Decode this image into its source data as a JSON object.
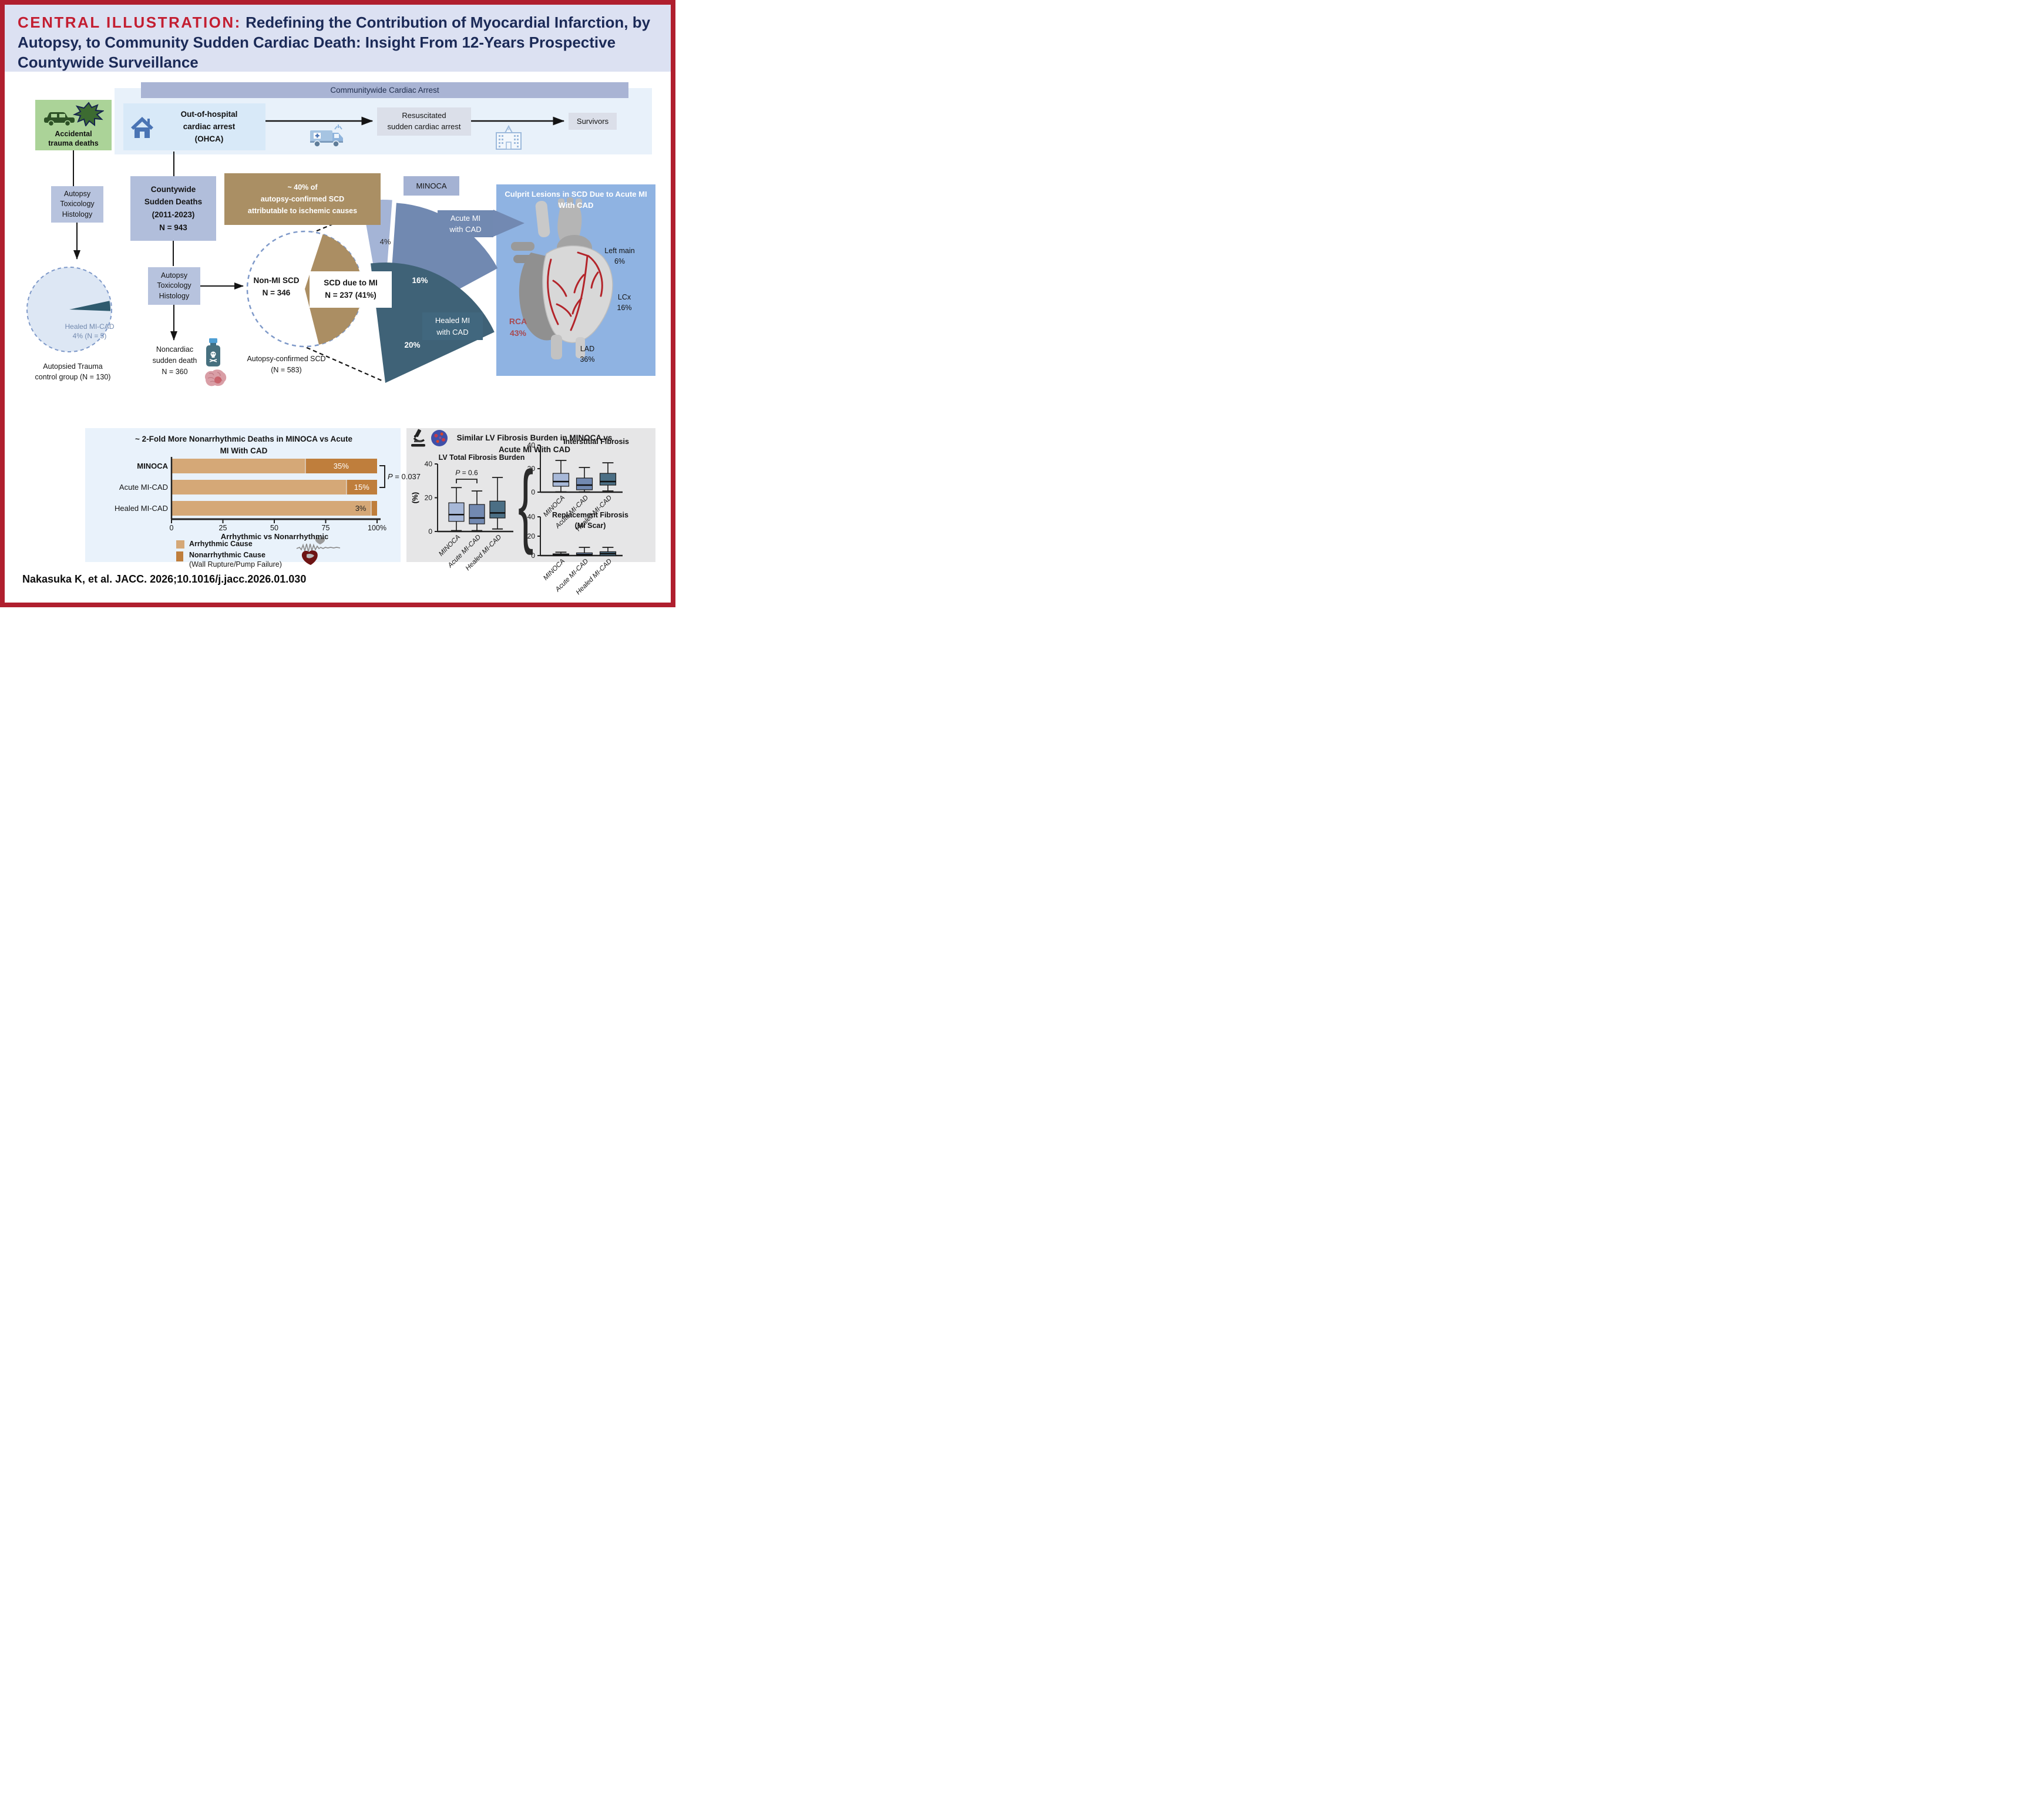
{
  "title": {
    "label": "CENTRAL ILLUSTRATION:",
    "text": "Redefining the Contribution of Myocardial Infarction, by Autopsy, to Community Sudden Cardiac Death: Insight From 12-Years Prospective Countywide Surveillance"
  },
  "citation": "Nakasuka K, et al. JACC. 2026;10.1016/j.jacc.2026.01.030",
  "top_flow": {
    "header": "Communitywide Cardiac Arrest",
    "accidental": {
      "line1": "Accidental",
      "line2": "trauma deaths"
    },
    "ohca": {
      "line1": "Out-of-hospital",
      "line2": "cardiac arrest",
      "line3": "(OHCA)"
    },
    "resuscitated": {
      "line1": "Resuscitated",
      "line2": "sudden cardiac arrest"
    },
    "survivors": "Survivors"
  },
  "left_flow": {
    "autopsy_box": {
      "line1": "Autopsy",
      "line2": "Toxicology",
      "line3": "Histology"
    },
    "pie_label": {
      "line1": "Healed MI-CAD",
      "line2": "4% (N = 5)"
    },
    "caption": {
      "line1": "Autopsied Trauma",
      "line2": "control group (N = 130)"
    }
  },
  "mid_flow": {
    "countywide": {
      "line1": "Countywide",
      "line2": "Sudden Deaths",
      "line3": "(2011-2023)",
      "line4": "N = 943"
    },
    "autopsy_box": {
      "line1": "Autopsy",
      "line2": "Toxicology",
      "line3": "Histology"
    },
    "noncardiac": {
      "line1": "Noncardiac",
      "line2": "sudden death",
      "line3": "N = 360"
    },
    "brown_note": {
      "line1": "~ 40% of",
      "line2": "autopsy-confirmed SCD",
      "line3": "attributable to ischemic causes"
    },
    "non_mi": {
      "line1": "Non-MI SCD",
      "line2": "N = 346"
    },
    "scd_mi": {
      "line1": "SCD due to MI",
      "line2": "N = 237 (41%)"
    },
    "autopsy_confirmed": {
      "line1": "Autopsy-confirmed SCD",
      "line2": "(N = 583)"
    }
  },
  "fan": {
    "minoca_label": "MINOCA",
    "acute_label": {
      "line1": "Acute MI",
      "line2": "with CAD"
    },
    "healed_label": {
      "line1": "Healed MI",
      "line2": "with CAD"
    },
    "pct_labels": {
      "minoca": "4%",
      "acute": "16%",
      "healed": "20%"
    }
  },
  "culprit": {
    "title": "Culprit Lesions in SCD Due to Acute MI With CAD",
    "items": [
      {
        "name": "Left main",
        "pct": "6%"
      },
      {
        "name": "LCx",
        "pct": "16%"
      },
      {
        "name": "RCA",
        "pct": "43%"
      },
      {
        "name": "LAD",
        "pct": "36%"
      }
    ]
  },
  "bar_panel": {
    "legend": {
      "arrhythmic": "Arrhythmic Cause",
      "nonarrhythmic": "Nonarrhythmic Cause",
      "nonarrhythmic_sub": "(Wall Rupture/Pump Failure)"
    }
  },
  "fibrosis_panel": {
    "title": "Similar LV Fibrosis Burden in MINOCA vs Acute MI With CAD"
  },
  "colors": {
    "border": "#b01f2e",
    "accent_red": "#c31e31",
    "navy": "#1b2a57",
    "tan": "#d5a877",
    "orange": "#bf7e3c",
    "teal": "#3f6277",
    "medium_blue": "#7189b1",
    "light_blue": "#a4b4d6",
    "brown": "#ab8e63",
    "heart_panel": "#8fb3e2",
    "rca_red": "#a94a50",
    "green_box": "#abd398"
  },
  "chart_data": [
    {
      "type": "bar",
      "orientation": "horizontal",
      "title": "~ 2-Fold More Nonarrhythmic Deaths in MINOCA vs Acute MI With CAD",
      "categories": [
        "MINOCA",
        "Acute MI-CAD",
        "Healed MI-CAD"
      ],
      "series": [
        {
          "name": "Arrhythmic Cause",
          "color": "#d5a877",
          "values": [
            65,
            85,
            97
          ]
        },
        {
          "name": "Nonarrhythmic Cause (Wall Rupture/Pump Failure)",
          "color": "#bf7e3c",
          "values": [
            35,
            15,
            3
          ]
        }
      ],
      "value_labels": [
        "35%",
        "15%",
        "3%"
      ],
      "xlabel": "Arrhythmic vs Nonarrhythmic",
      "xticks": [
        "0",
        "25",
        "50",
        "75",
        "100%"
      ],
      "xlim": [
        0,
        100
      ],
      "p_value": "P = 0.037"
    },
    {
      "type": "boxplot",
      "title": "LV Total Fibrosis Burden",
      "ylabel": "(%)",
      "yticks": [
        0,
        20,
        40
      ],
      "ylim": [
        0,
        40
      ],
      "p_value": "P = 0.6",
      "groups": [
        {
          "name": "MINOCA",
          "color": "#a7b8d8",
          "low": 0.5,
          "q1": 6,
          "median": 10,
          "q3": 17,
          "high": 26
        },
        {
          "name": "Acute MI-CAD",
          "color": "#7289b1",
          "low": 0.5,
          "q1": 4.5,
          "median": 8,
          "q3": 16,
          "high": 24
        },
        {
          "name": "Healed MI-CAD",
          "color": "#4b6f85",
          "low": 1.5,
          "q1": 8,
          "median": 11,
          "q3": 18,
          "high": 32
        }
      ]
    },
    {
      "type": "boxplot",
      "title": "Interstitial Fibrosis",
      "yticks": [
        0,
        20,
        40
      ],
      "ylim": [
        0,
        40
      ],
      "groups": [
        {
          "name": "MINOCA",
          "color": "#a7b8d8",
          "low": 0.3,
          "q1": 5,
          "median": 9,
          "q3": 16,
          "high": 27
        },
        {
          "name": "Acute MI-CAD",
          "color": "#7289b1",
          "low": 0.3,
          "q1": 2,
          "median": 6,
          "q3": 12,
          "high": 21
        },
        {
          "name": "Healed MI-CAD",
          "color": "#4b6f85",
          "low": 1,
          "q1": 6,
          "median": 9,
          "q3": 16,
          "high": 25
        }
      ]
    },
    {
      "type": "boxplot",
      "title": "Replacement Fibrosis (MI Scar)",
      "yticks": [
        0,
        20,
        40
      ],
      "ylim": [
        0,
        40
      ],
      "groups": [
        {
          "name": "MINOCA",
          "color": "#a7b8d8",
          "low": 0,
          "q1": 0,
          "median": 0.7,
          "q3": 1.8,
          "high": 3.5
        },
        {
          "name": "Acute MI-CAD",
          "color": "#7289b1",
          "low": 0,
          "q1": 0,
          "median": 1,
          "q3": 2.8,
          "high": 8.5
        },
        {
          "name": "Healed MI-CAD",
          "color": "#4b6f85",
          "low": 0,
          "q1": 0,
          "median": 2,
          "q3": 4,
          "high": 8.5
        }
      ]
    },
    {
      "type": "pie",
      "name": "autopsied_trauma_control_pie",
      "slices": [
        {
          "label": "Healed MI-CAD",
          "pct": 4,
          "n": 5
        }
      ],
      "total_label": "Autopsied Trauma control group (N = 130)",
      "total_n": 130
    },
    {
      "type": "pie",
      "name": "autopsy_confirmed_scd_pie",
      "slices": [
        {
          "label": "SCD due to MI",
          "pct": 41,
          "n": 237
        },
        {
          "label": "Non-MI SCD",
          "pct": 59,
          "n": 346
        }
      ],
      "total_label": "Autopsy-confirmed SCD (N = 583)",
      "total_n": 583
    },
    {
      "type": "pie",
      "name": "scd_due_to_mi_breakdown_fan",
      "slices": [
        {
          "label": "MINOCA",
          "pct": 4
        },
        {
          "label": "Acute MI with CAD",
          "pct": 16
        },
        {
          "label": "Healed MI with CAD",
          "pct": 20
        }
      ]
    },
    {
      "type": "bar",
      "name": "culprit_lesions",
      "title": "Culprit Lesions in SCD Due to Acute MI With CAD",
      "categories": [
        "RCA",
        "LAD",
        "LCx",
        "Left main"
      ],
      "values": [
        43,
        36,
        16,
        6
      ]
    }
  ]
}
